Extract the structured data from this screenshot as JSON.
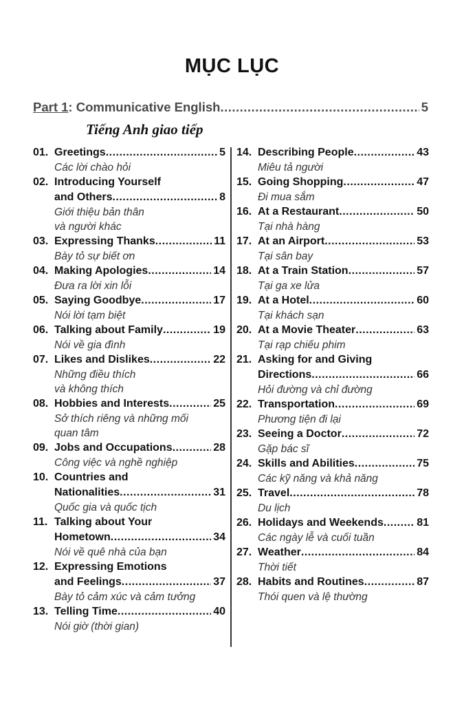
{
  "title": "MỤC LỤC",
  "part": {
    "label": "Part 1",
    "rest": ": Communicative English ",
    "page": "5",
    "subtitle": "Tiếng Anh giao tiếp"
  },
  "left": [
    {
      "num": "01.",
      "lines": [
        "Greetings"
      ],
      "page": "5",
      "viet": [
        "Các lời chào hỏi"
      ]
    },
    {
      "num": "02.",
      "lines": [
        "Introducing Yourself",
        "and Others"
      ],
      "page": "8",
      "viet": [
        "Giới thiệu bản thân",
        "và người khác"
      ]
    },
    {
      "num": "03.",
      "lines": [
        "Expressing Thanks "
      ],
      "page": "11",
      "viet": [
        "Bày tỏ sự biết ơn"
      ]
    },
    {
      "num": "04.",
      "lines": [
        "Making Apologies"
      ],
      "page": "14",
      "viet": [
        "Đưa ra lời xin lỗi"
      ]
    },
    {
      "num": "05.",
      "lines": [
        "Saying Goodbye "
      ],
      "page": "17",
      "viet": [
        "Nói lời tạm biệt"
      ]
    },
    {
      "num": "06.",
      "lines": [
        "Talking about Family"
      ],
      "page": "19",
      "viet": [
        "Nói về gia đình"
      ]
    },
    {
      "num": "07.",
      "lines": [
        "Likes and Dislikes "
      ],
      "page": "22",
      "viet": [
        "Những điều thích",
        "và không thích"
      ]
    },
    {
      "num": "08.",
      "lines": [
        "Hobbies and Interests"
      ],
      "page": "25",
      "viet": [
        "Sở thích riêng  và những mối",
        "quan tâm"
      ]
    },
    {
      "num": "09.",
      "lines": [
        "Jobs and Occupations "
      ],
      "page": "28",
      "viet": [
        "Công việc và nghề nghiệp"
      ]
    },
    {
      "num": "10.",
      "lines": [
        "Countries and",
        "Nationalities "
      ],
      "page": "31",
      "viet": [
        "Quốc gia và quốc tịch"
      ]
    },
    {
      "num": "11.",
      "lines": [
        "Talking about Your",
        "Hometown"
      ],
      "page": "34",
      "viet": [
        "Nói về quê nhà của bạn"
      ]
    },
    {
      "num": "12.",
      "lines": [
        "Expressing Emotions",
        "and Feelings"
      ],
      "page": "37",
      "viet": [
        "Bày tỏ cảm xúc và cảm tưởng"
      ]
    },
    {
      "num": "13.",
      "lines": [
        "Telling Time "
      ],
      "page": "40",
      "viet": [
        "Nói giờ (thời gian)"
      ]
    }
  ],
  "right": [
    {
      "num": "14.",
      "lines": [
        "Describing People "
      ],
      "page": "43",
      "viet": [
        "Miêu tả người"
      ]
    },
    {
      "num": "15.",
      "lines": [
        "Going Shopping"
      ],
      "page": "47",
      "viet": [
        "Đi mua sắm"
      ]
    },
    {
      "num": "16.",
      "lines": [
        "At a Restaurant "
      ],
      "page": "50",
      "viet": [
        "Tại nhà hàng"
      ]
    },
    {
      "num": "17.",
      "lines": [
        "At an Airport"
      ],
      "page": "53",
      "viet": [
        "Tại sân bay"
      ]
    },
    {
      "num": "18.",
      "lines": [
        "At a Train Station"
      ],
      "page": "57",
      "viet": [
        "Tại ga xe lửa"
      ]
    },
    {
      "num": "19.",
      "lines": [
        "At a Hotel"
      ],
      "page": "60",
      "viet": [
        "Tại khách sạn"
      ]
    },
    {
      "num": "20.",
      "lines": [
        "At a Movie Theater"
      ],
      "page": "63",
      "viet": [
        "Tại rạp chiếu phim"
      ]
    },
    {
      "num": "21.",
      "lines": [
        "Asking for and Giving",
        "Directions "
      ],
      "page": "66",
      "viet": [
        "Hỏi đường và chỉ đường"
      ]
    },
    {
      "num": "22.",
      "lines": [
        "Transportation "
      ],
      "page": "69",
      "viet": [
        "Phương tiện đi lại"
      ]
    },
    {
      "num": "23.",
      "lines": [
        "Seeing a Doctor "
      ],
      "page": "72",
      "viet": [
        "Gặp bác sĩ"
      ]
    },
    {
      "num": "24.",
      "lines": [
        "Skills and Abilities"
      ],
      "page": "75",
      "viet": [
        "Các kỹ năng và khả năng"
      ]
    },
    {
      "num": "25.",
      "lines": [
        "Travel"
      ],
      "page": "78",
      "viet": [
        "Du lịch"
      ]
    },
    {
      "num": "26.",
      "lines": [
        "Holidays and Weekends "
      ],
      "page": "81",
      "viet": [
        "Các ngày lễ và cuối tuần"
      ]
    },
    {
      "num": "27.",
      "lines": [
        "Weather "
      ],
      "page": "84",
      "viet": [
        "Thời tiết"
      ]
    },
    {
      "num": "28.",
      "lines": [
        "Habits and Routines"
      ],
      "page": "87",
      "viet": [
        "Thói quen và lệ thường"
      ]
    }
  ]
}
